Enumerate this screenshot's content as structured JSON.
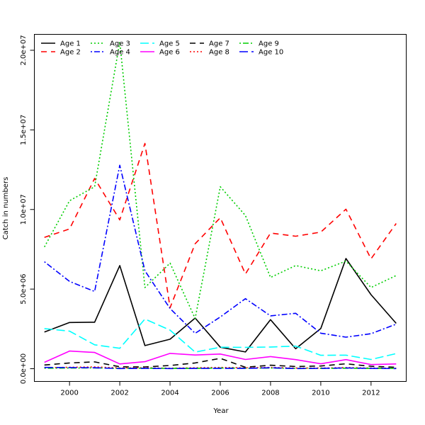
{
  "chart_data": {
    "type": "line",
    "title": "",
    "xlabel": "Year",
    "ylabel": "Catch in numbers",
    "xlim": [
      1998.6,
      2013.4
    ],
    "ylim": [
      -800000,
      21000000
    ],
    "x_ticks": [
      2000,
      2002,
      2004,
      2006,
      2008,
      2010,
      2012
    ],
    "x_tick_labels": [
      "2000",
      "2002",
      "2004",
      "2006",
      "2008",
      "2010",
      "2012"
    ],
    "y_ticks": [
      0,
      5000000,
      10000000,
      15000000,
      20000000
    ],
    "y_tick_labels": [
      "0.0e+00",
      "5.0e+06",
      "1.0e+07",
      "1.5e+07",
      "2.0e+07"
    ],
    "grid": false,
    "legend_position": "top-left",
    "x": [
      1999,
      2000,
      2001,
      2002,
      2003,
      2004,
      2005,
      2006,
      2007,
      2008,
      2009,
      2010,
      2011,
      2012,
      2013
    ],
    "series": [
      {
        "name": "Age 1",
        "color": "#000000",
        "dash": "solid",
        "values": [
          2300000,
          2900000,
          2920000,
          6480000,
          1450000,
          1850000,
          3180000,
          1350000,
          1050000,
          3080000,
          1250000,
          2530000,
          6920000,
          4650000,
          2850000
        ]
      },
      {
        "name": "Age 2",
        "color": "#ff0000",
        "dash": "dashed",
        "values": [
          8250000,
          8780000,
          11950000,
          9350000,
          14150000,
          3830000,
          7850000,
          9480000,
          5950000,
          8520000,
          8320000,
          8580000,
          10020000,
          6900000,
          9120000
        ]
      },
      {
        "name": "Age 3",
        "color": "#00cd00",
        "dash": "dotted",
        "values": [
          7650000,
          10550000,
          11430000,
          20520000,
          5100000,
          6630000,
          3150000,
          11430000,
          9620000,
          5730000,
          6480000,
          6150000,
          6760000,
          5100000,
          5850000
        ]
      },
      {
        "name": "Age 4",
        "color": "#0000ff",
        "dash": "dotdash",
        "values": [
          6720000,
          5480000,
          4850000,
          12780000,
          6150000,
          3780000,
          2220000,
          3250000,
          4400000,
          3320000,
          3480000,
          2230000,
          1980000,
          2200000,
          2800000
        ]
      },
      {
        "name": "Age 5",
        "color": "#00ffff",
        "dash": "longdash",
        "values": [
          2520000,
          2360000,
          1500000,
          1280000,
          3120000,
          2420000,
          1040000,
          1350000,
          1340000,
          1360000,
          1420000,
          840000,
          850000,
          580000,
          950000
        ]
      },
      {
        "name": "Age 6",
        "color": "#ff00ff",
        "dash": "solid",
        "values": [
          400000,
          1110000,
          1020000,
          300000,
          440000,
          960000,
          860000,
          920000,
          580000,
          760000,
          570000,
          310000,
          570000,
          260000,
          300000
        ]
      },
      {
        "name": "Age 7",
        "color": "#000000",
        "dash": "dashed",
        "values": [
          230000,
          360000,
          430000,
          120000,
          110000,
          200000,
          360000,
          650000,
          90000,
          220000,
          140000,
          170000,
          310000,
          150000,
          90000
        ]
      },
      {
        "name": "Age 8",
        "color": "#ff0000",
        "dash": "dotted",
        "values": [
          60000,
          90000,
          110000,
          50000,
          60000,
          30000,
          60000,
          80000,
          60000,
          80000,
          40000,
          40000,
          70000,
          40000,
          30000
        ]
      },
      {
        "name": "Age 9",
        "color": "#00cd00",
        "dash": "dotdash",
        "values": [
          30000,
          40000,
          50000,
          20000,
          30000,
          20000,
          20000,
          40000,
          30000,
          40000,
          20000,
          20000,
          30000,
          20000,
          20000
        ]
      },
      {
        "name": "Age 10",
        "color": "#0000ff",
        "dash": "longdash",
        "values": [
          80000,
          70000,
          60000,
          10000,
          20000,
          10000,
          20000,
          20000,
          20000,
          60000,
          10000,
          20000,
          50000,
          20000,
          10000
        ]
      }
    ]
  }
}
